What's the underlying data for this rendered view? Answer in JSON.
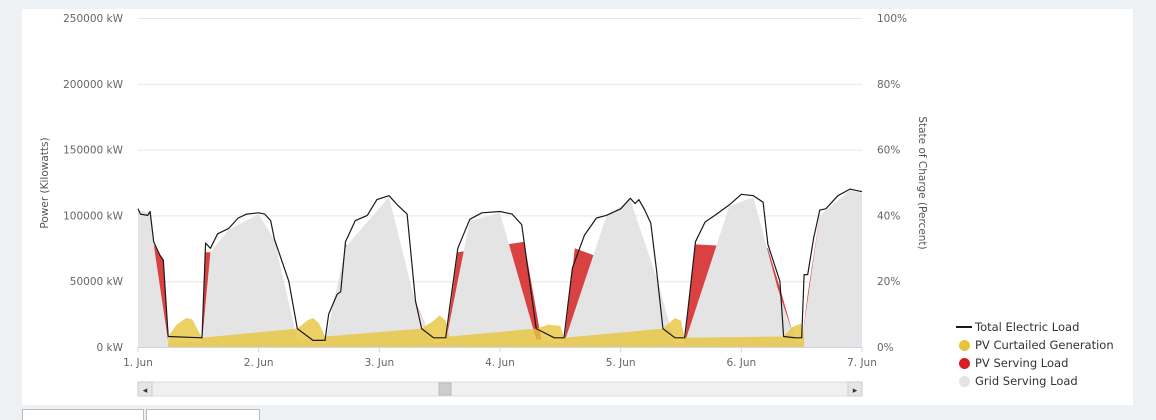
{
  "chart_data": {
    "type": "area",
    "y_left": {
      "label": "Power (Kilowatts)",
      "min": 0,
      "max": 250000,
      "tick_step": 50000,
      "tick_labels": [
        "0 kW",
        "50000 kW",
        "100000 kW",
        "150000 kW",
        "200000 kW",
        "250000 kW"
      ]
    },
    "y_right": {
      "label": "State of Charge (Percent)",
      "min": 0,
      "max": 100,
      "tick_labels": [
        "0%",
        "20%",
        "40%",
        "60%",
        "80%",
        "100%"
      ]
    },
    "x_axis": {
      "unit": "day",
      "min": 1,
      "max": 7,
      "tick_labels": [
        "1. Jun",
        "2. Jun",
        "3. Jun",
        "4. Jun",
        "5. Jun",
        "6. Jun",
        "7. Jun"
      ]
    },
    "grid": true,
    "legend_position": "bottom-right",
    "series": [
      {
        "name": "Total Electric Load",
        "type": "line",
        "color": "#1a1a1a",
        "points": [
          [
            1.0,
            105000
          ],
          [
            1.02,
            101000
          ],
          [
            1.08,
            100000
          ],
          [
            1.1,
            103000
          ],
          [
            1.13,
            80000
          ],
          [
            1.18,
            70000
          ],
          [
            1.21,
            66000
          ],
          [
            1.25,
            8000
          ],
          [
            1.53,
            7000
          ],
          [
            1.56,
            79000
          ],
          [
            1.6,
            75000
          ],
          [
            1.66,
            86000
          ],
          [
            1.75,
            90000
          ],
          [
            1.83,
            98000
          ],
          [
            1.9,
            101000
          ],
          [
            2.0,
            102000
          ],
          [
            2.05,
            101000
          ],
          [
            2.1,
            96000
          ],
          [
            2.13,
            82000
          ],
          [
            2.25,
            50000
          ],
          [
            2.32,
            14000
          ],
          [
            2.45,
            5000
          ],
          [
            2.55,
            5000
          ],
          [
            2.58,
            25000
          ],
          [
            2.65,
            40000
          ],
          [
            2.68,
            42000
          ],
          [
            2.72,
            80000
          ],
          [
            2.8,
            96000
          ],
          [
            2.9,
            100000
          ],
          [
            2.98,
            112000
          ],
          [
            3.08,
            115000
          ],
          [
            3.15,
            108000
          ],
          [
            3.23,
            101000
          ],
          [
            3.3,
            35000
          ],
          [
            3.35,
            14000
          ],
          [
            3.45,
            7000
          ],
          [
            3.55,
            7000
          ],
          [
            3.58,
            28000
          ],
          [
            3.65,
            75000
          ],
          [
            3.75,
            97000
          ],
          [
            3.85,
            102000
          ],
          [
            4.0,
            103000
          ],
          [
            4.1,
            101000
          ],
          [
            4.18,
            93000
          ],
          [
            4.3,
            14000
          ],
          [
            4.45,
            7000
          ],
          [
            4.53,
            7000
          ],
          [
            4.56,
            30000
          ],
          [
            4.6,
            60000
          ],
          [
            4.7,
            85000
          ],
          [
            4.8,
            98000
          ],
          [
            4.88,
            100000
          ],
          [
            5.0,
            105000
          ],
          [
            5.08,
            113000
          ],
          [
            5.12,
            109000
          ],
          [
            5.15,
            112000
          ],
          [
            5.2,
            104000
          ],
          [
            5.25,
            94000
          ],
          [
            5.3,
            56000
          ],
          [
            5.35,
            14000
          ],
          [
            5.45,
            7000
          ],
          [
            5.53,
            7000
          ],
          [
            5.56,
            30000
          ],
          [
            5.62,
            80000
          ],
          [
            5.7,
            95000
          ],
          [
            5.78,
            100000
          ],
          [
            5.9,
            108000
          ],
          [
            6.0,
            116000
          ],
          [
            6.1,
            115000
          ],
          [
            6.18,
            110000
          ],
          [
            6.22,
            78000
          ],
          [
            6.32,
            50000
          ],
          [
            6.35,
            8000
          ],
          [
            6.45,
            7000
          ],
          [
            6.5,
            7000
          ],
          [
            6.52,
            55000
          ],
          [
            6.55,
            55000
          ],
          [
            6.6,
            83000
          ],
          [
            6.65,
            104000
          ],
          [
            6.7,
            105000
          ],
          [
            6.8,
            115000
          ],
          [
            6.9,
            120000
          ],
          [
            7.0,
            118000
          ]
        ]
      },
      {
        "name": "PV Curtailed Generation",
        "type": "area",
        "color": "#e8c43c",
        "points": [
          [
            1.25,
            8000
          ],
          [
            1.32,
            17000
          ],
          [
            1.4,
            22000
          ],
          [
            1.45,
            21000
          ],
          [
            1.53,
            7000
          ],
          [
            2.32,
            14000
          ],
          [
            2.4,
            20000
          ],
          [
            2.45,
            22000
          ],
          [
            2.5,
            18000
          ],
          [
            2.55,
            8000
          ],
          [
            3.35,
            14000
          ],
          [
            3.45,
            20000
          ],
          [
            3.5,
            24000
          ],
          [
            3.55,
            20000
          ],
          [
            3.58,
            8000
          ],
          [
            4.3,
            14000
          ],
          [
            4.4,
            17000
          ],
          [
            4.5,
            16000
          ],
          [
            4.53,
            7000
          ],
          [
            5.35,
            14000
          ],
          [
            5.45,
            22000
          ],
          [
            5.5,
            20000
          ],
          [
            5.53,
            7000
          ],
          [
            6.35,
            8000
          ],
          [
            6.42,
            15000
          ],
          [
            6.5,
            18000
          ],
          [
            6.52,
            8000
          ]
        ]
      },
      {
        "name": "PV Serving Load",
        "type": "area",
        "color": "#d42020",
        "points": [
          [
            1.13,
            78000
          ],
          [
            1.21,
            66000
          ],
          [
            1.25,
            3000
          ],
          [
            1.53,
            3000
          ],
          [
            1.56,
            72000
          ],
          [
            1.62,
            72000
          ],
          [
            2.13,
            82000
          ],
          [
            2.3,
            5000
          ],
          [
            2.55,
            2000
          ],
          [
            2.68,
            40000
          ],
          [
            2.72,
            78000
          ],
          [
            3.3,
            34000
          ],
          [
            3.45,
            3000
          ],
          [
            3.55,
            3000
          ],
          [
            3.65,
            72000
          ],
          [
            4.2,
            80000
          ],
          [
            4.35,
            2000
          ],
          [
            4.53,
            2000
          ],
          [
            4.62,
            75000
          ],
          [
            5.3,
            52000
          ],
          [
            5.4,
            2000
          ],
          [
            5.53,
            2000
          ],
          [
            5.62,
            78000
          ],
          [
            6.22,
            75000
          ],
          [
            6.32,
            45000
          ],
          [
            6.45,
            3000
          ],
          [
            6.5,
            3000
          ],
          [
            6.55,
            40000
          ],
          [
            6.65,
            100000
          ]
        ]
      },
      {
        "name": "Grid Serving Load",
        "type": "area",
        "color": "#e4e4e4",
        "points": [
          [
            1.0,
            104000
          ],
          [
            1.1,
            102000
          ],
          [
            1.13,
            78000
          ],
          [
            1.25,
            4000
          ],
          [
            1.53,
            4000
          ],
          [
            1.6,
            72000
          ],
          [
            1.75,
            89000
          ],
          [
            2.0,
            101000
          ],
          [
            2.13,
            81000
          ],
          [
            2.32,
            6000
          ],
          [
            2.55,
            3000
          ],
          [
            2.72,
            76000
          ],
          [
            3.08,
            114000
          ],
          [
            3.3,
            33000
          ],
          [
            3.45,
            4000
          ],
          [
            3.55,
            4000
          ],
          [
            3.75,
            96000
          ],
          [
            4.0,
            102000
          ],
          [
            4.3,
            6000
          ],
          [
            4.53,
            3000
          ],
          [
            4.88,
            99000
          ],
          [
            5.08,
            112000
          ],
          [
            5.3,
            52000
          ],
          [
            5.45,
            3000
          ],
          [
            5.53,
            3000
          ],
          [
            5.9,
            107000
          ],
          [
            6.1,
            114000
          ],
          [
            6.3,
            45000
          ],
          [
            6.45,
            4000
          ],
          [
            6.5,
            4000
          ],
          [
            6.65,
            100000
          ],
          [
            6.9,
            119000
          ],
          [
            7.0,
            117000
          ]
        ]
      }
    ]
  },
  "legend": {
    "items": [
      {
        "label": "Total Electric Load",
        "symbol": "line",
        "color": "#1a1a1a"
      },
      {
        "label": "PV Curtailed Generation",
        "symbol": "dot",
        "color": "#e8c43c"
      },
      {
        "label": "PV Serving Load",
        "symbol": "dot",
        "color": "#d42020"
      },
      {
        "label": "Grid Serving Load",
        "symbol": "dot",
        "color": "#e4e4e4"
      }
    ]
  },
  "scrollbar": {
    "left_arrow": "◂",
    "right_arrow": "▸"
  }
}
